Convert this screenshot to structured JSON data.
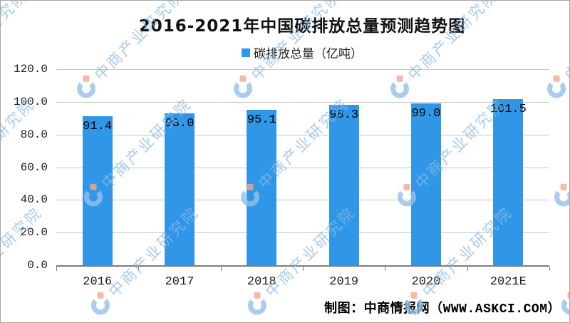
{
  "title": "2016-2021年中国碳排放总量预测趋势图",
  "legend": {
    "label": "碳排放总量（亿吨）"
  },
  "footer": "制图：中商情报网（WWW.ASKCI.COM）",
  "watermark": {
    "text": "中商产业研究院",
    "logo": "csyjy-logo"
  },
  "colors": {
    "bar": "#2F96E8",
    "grid": "#c6c6c6",
    "axis": "#7d7d7d",
    "watermark_text": "rgba(140,186,230,0.75)",
    "watermark_logo_blue": "rgba(150,192,232,0.8)",
    "watermark_logo_salmon": "rgba(242,167,143,0.8)"
  },
  "chart_data": {
    "type": "bar",
    "categories": [
      "2016",
      "2017",
      "2018",
      "2019",
      "2020",
      "2021E"
    ],
    "series": [
      {
        "name": "碳排放总量（亿吨）",
        "values": [
          91.4,
          93.0,
          95.1,
          98.3,
          99.0,
          101.5
        ]
      }
    ],
    "title": "2016-2021年中国碳排放总量预测趋势图",
    "xlabel": "",
    "ylabel": "",
    "ylim": [
      0,
      120
    ],
    "ytick_step": 20,
    "ytick_labels": [
      "0.0",
      "20.0",
      "40.0",
      "60.0",
      "80.0",
      "100.0",
      "120.0"
    ],
    "value_labels": [
      "91.4",
      "93.0",
      "95.1",
      "98.3",
      "99.0",
      "101.5"
    ],
    "grid": true,
    "legend_position": "top",
    "bar_color": "#2F96E8"
  }
}
